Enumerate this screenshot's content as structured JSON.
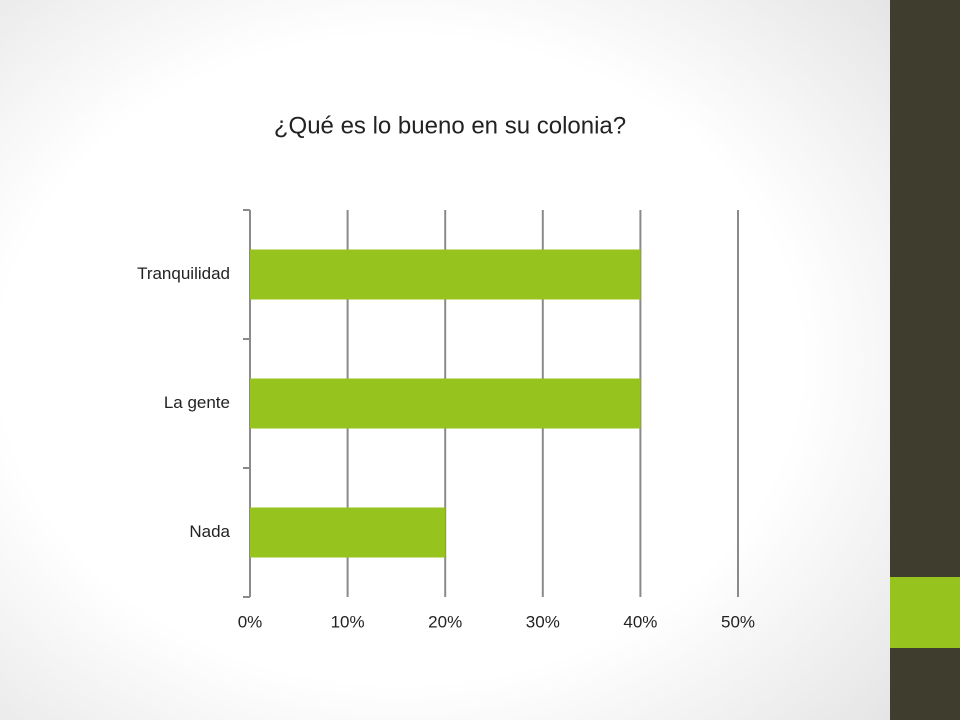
{
  "chart_data": {
    "type": "barh",
    "title": "¿Qué es lo bueno en su colonia?",
    "categories": [
      "Tranquilidad",
      "La gente",
      "Nada"
    ],
    "values": [
      40,
      40,
      20
    ],
    "color": "#97c31e",
    "xlim": [
      0,
      50
    ],
    "xticks": [
      {
        "value": 0,
        "label": "0%"
      },
      {
        "value": 10,
        "label": "10%"
      },
      {
        "value": 20,
        "label": "20%"
      },
      {
        "value": 30,
        "label": "30%"
      },
      {
        "value": 40,
        "label": "40%"
      },
      {
        "value": 50,
        "label": "50%"
      }
    ],
    "grid": true
  }
}
